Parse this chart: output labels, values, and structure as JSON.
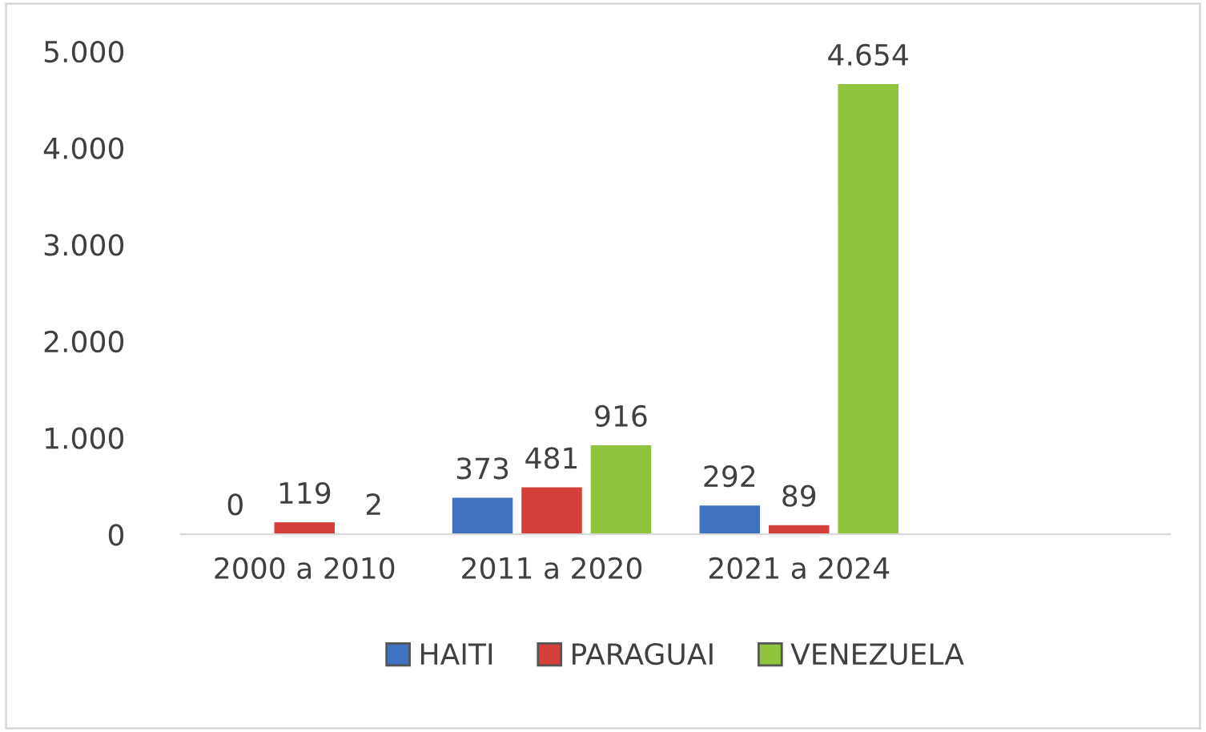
{
  "chart_data": {
    "type": "bar",
    "categories": [
      "2000 a 2010",
      "2011 a 2020",
      "2021 a 2024",
      null
    ],
    "series": [
      {
        "name": "HAITI",
        "color": "#3f72c0",
        "values": [
          0,
          373,
          292,
          null
        ],
        "value_labels": [
          "0",
          "373",
          "292",
          null
        ]
      },
      {
        "name": "PARAGUAI",
        "color": "#d43f3a",
        "values": [
          119,
          481,
          89,
          null
        ],
        "value_labels": [
          "119",
          "481",
          "89",
          null
        ]
      },
      {
        "name": "VENEZUELA",
        "color": "#8fc43c",
        "values": [
          2,
          916,
          4654,
          null
        ],
        "value_labels": [
          "2",
          "916",
          "4.654",
          null
        ]
      }
    ],
    "ylim": [
      0,
      5000
    ],
    "yticks": [
      {
        "value": 0,
        "label": "0"
      },
      {
        "value": 1000,
        "label": "1.000"
      },
      {
        "value": 2000,
        "label": "2.000"
      },
      {
        "value": 3000,
        "label": "3.000"
      },
      {
        "value": 4000,
        "label": "4.000"
      },
      {
        "value": 5000,
        "label": "5.000"
      }
    ],
    "grid": false,
    "legend": "bottom"
  }
}
